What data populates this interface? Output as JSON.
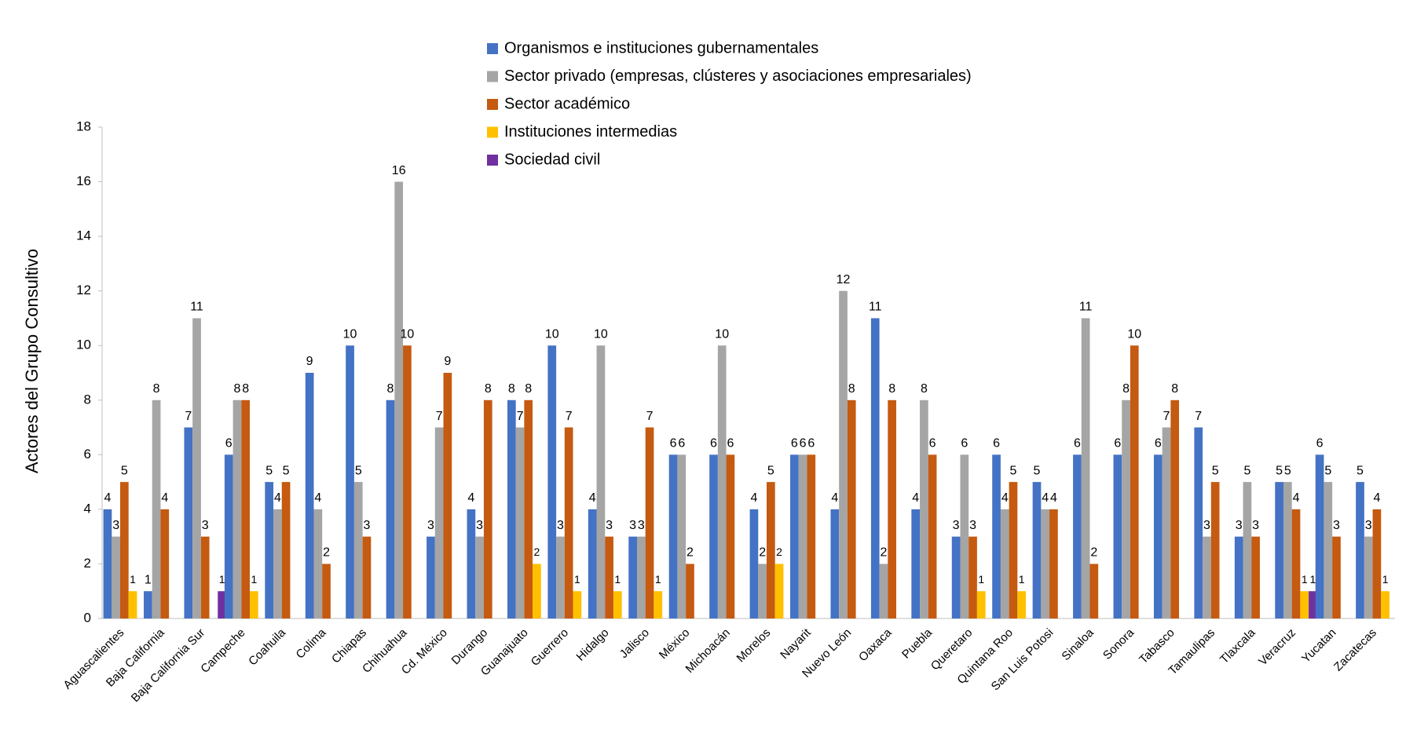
{
  "chart_data": {
    "type": "bar",
    "y_label": "Actores del Grupo Consultivo",
    "categories": [
      "Aguascalientes",
      "Baja California",
      "Baja California Sur",
      "Campeche",
      "Coahuila",
      "Colima",
      "Chiapas",
      "Chihuahua",
      "Cd. México",
      "Durango",
      "Guanajuato",
      "Guerrero",
      "Hidalgo",
      "Jalisco",
      "México",
      "Michoacán",
      "Morelos",
      "Nayarit",
      "Nuevo León",
      "Oaxaca",
      "Puebla",
      "Queretaro",
      "Quintana Roo",
      "San Luis Potosi",
      "Sinaloa",
      "Sonora",
      "Tabasco",
      "Tamaulipas",
      "Tlaxcala",
      "Veracruz",
      "Yucatan",
      "Zacatecas"
    ],
    "series": [
      {
        "name": "Organismos e instituciones gubernamentales",
        "color": "#4472c4",
        "values": [
          4,
          1,
          7,
          6,
          5,
          9,
          10,
          8,
          3,
          4,
          8,
          10,
          4,
          3,
          6,
          6,
          4,
          6,
          4,
          11,
          4,
          3,
          6,
          5,
          6,
          6,
          6,
          7,
          3,
          5,
          6,
          5
        ]
      },
      {
        "name": "Sector privado (empresas, clústeres y asociaciones empresariales)",
        "color": "#a5a5a5",
        "values": [
          3,
          8,
          11,
          8,
          4,
          4,
          5,
          16,
          7,
          3,
          7,
          3,
          10,
          3,
          6,
          10,
          2,
          6,
          12,
          2,
          8,
          6,
          4,
          4,
          11,
          8,
          7,
          3,
          5,
          5,
          5,
          3
        ]
      },
      {
        "name": "Sector académico",
        "color": "#c55a11",
        "values": [
          5,
          4,
          3,
          8,
          5,
          2,
          3,
          10,
          9,
          8,
          8,
          7,
          3,
          7,
          2,
          6,
          5,
          6,
          8,
          8,
          6,
          3,
          5,
          4,
          2,
          10,
          8,
          5,
          3,
          4,
          3,
          4
        ]
      },
      {
        "name": "Instituciones intermedias",
        "color": "#ffc000",
        "values": [
          1,
          null,
          null,
          1,
          null,
          null,
          null,
          null,
          null,
          null,
          2,
          1,
          1,
          1,
          null,
          null,
          2,
          null,
          null,
          null,
          null,
          1,
          1,
          null,
          null,
          null,
          null,
          null,
          null,
          1,
          null,
          1
        ]
      },
      {
        "name": "Sociedad civil",
        "color": "#7030a0",
        "values": [
          null,
          null,
          1,
          null,
          null,
          null,
          null,
          null,
          null,
          null,
          null,
          null,
          null,
          null,
          null,
          null,
          null,
          null,
          null,
          null,
          null,
          null,
          null,
          null,
          null,
          null,
          null,
          null,
          null,
          1,
          null,
          null
        ]
      }
    ],
    "ylim": [
      0,
      18
    ],
    "yticks": [
      0,
      2,
      4,
      6,
      8,
      10,
      12,
      14,
      16,
      18
    ],
    "grid": false,
    "legend": "top"
  }
}
